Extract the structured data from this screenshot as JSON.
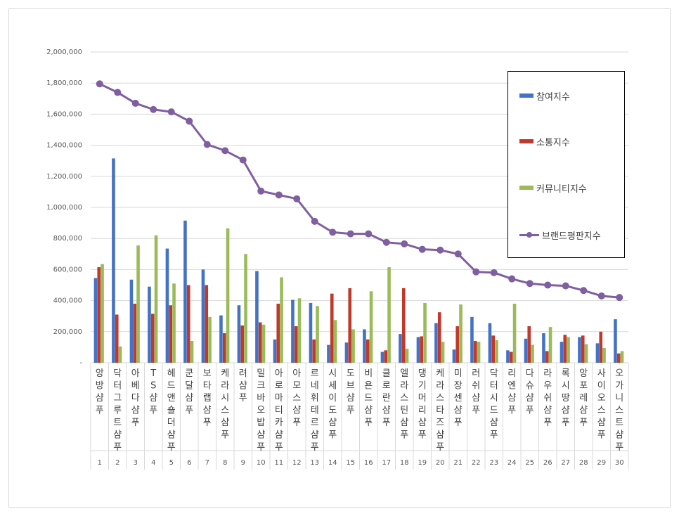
{
  "chart_data": {
    "type": "bar",
    "categories": [
      "앙방 샴푸",
      "닥터그루트 샴푸",
      "아베다 샴푸",
      "TS 샴푸",
      "헤드앤숄더 샴푸",
      "쿤달 샴푸",
      "보타랩 샴푸",
      "케라시스 샴푸",
      "려 샴푸",
      "밀크바오밥 샴푸",
      "아로마티카 샴푸",
      "아모스 샴푸",
      "르네휘테르 샴푸",
      "시세이도 샴푸",
      "도브 샴푸",
      "비욘드 샴푸",
      "클로란 샴푸",
      "엘라스틴 샴푸",
      "댕기머리 샴푸",
      "케라스타즈 샴푸",
      "미장센 샴푸",
      "러쉬 샴푸",
      "닥터시드 샴푸",
      "리엔 샴푸",
      "다슈 샴푸",
      "라우쉬 샴푸",
      "록시땅 샴푸",
      "앙포레 샴푸",
      "사이오스 샴푸",
      "오가니스트 샴푸"
    ],
    "ranks": [
      "1",
      "2",
      "3",
      "4",
      "5",
      "6",
      "7",
      "8",
      "9",
      "10",
      "11",
      "12",
      "13",
      "14",
      "15",
      "16",
      "17",
      "18",
      "19",
      "20",
      "21",
      "22",
      "23",
      "24",
      "25",
      "26",
      "27",
      "28",
      "29",
      "30"
    ],
    "series": [
      {
        "name": "참여지수",
        "type": "bar",
        "color": "#4472c4",
        "values": [
          545000,
          1315000,
          535000,
          490000,
          735000,
          915000,
          600000,
          305000,
          370000,
          590000,
          150000,
          405000,
          385000,
          115000,
          130000,
          215000,
          70000,
          185000,
          165000,
          255000,
          85000,
          295000,
          255000,
          80000,
          155000,
          190000,
          135000,
          165000,
          125000,
          280000
        ]
      },
      {
        "name": "소통지수",
        "type": "bar",
        "color": "#c0392b",
        "values": [
          615000,
          310000,
          380000,
          315000,
          370000,
          500000,
          500000,
          190000,
          240000,
          260000,
          380000,
          235000,
          150000,
          445000,
          480000,
          150000,
          80000,
          480000,
          170000,
          325000,
          235000,
          140000,
          175000,
          70000,
          235000,
          75000,
          180000,
          175000,
          200000,
          60000
        ]
      },
      {
        "name": "커뮤니티지수",
        "type": "bar",
        "color": "#9bbb59",
        "values": [
          635000,
          105000,
          755000,
          820000,
          510000,
          140000,
          295000,
          865000,
          700000,
          245000,
          550000,
          415000,
          365000,
          275000,
          215000,
          460000,
          615000,
          90000,
          385000,
          135000,
          375000,
          135000,
          145000,
          380000,
          115000,
          230000,
          165000,
          120000,
          95000,
          75000
        ]
      },
      {
        "name": "브랜드평판지수",
        "type": "line",
        "color": "#7f5fa0",
        "values": [
          1795000,
          1740000,
          1670000,
          1630000,
          1615000,
          1555000,
          1405000,
          1365000,
          1305000,
          1105000,
          1080000,
          1055000,
          910000,
          840000,
          830000,
          830000,
          775000,
          765000,
          730000,
          725000,
          700000,
          585000,
          580000,
          540000,
          510000,
          500000,
          495000,
          465000,
          430000,
          420000
        ]
      }
    ],
    "y_ticks": [
      "-",
      "200,000",
      "400,000",
      "600,000",
      "800,000",
      "1,000,000",
      "1,200,000",
      "1,400,000",
      "1,600,000",
      "1,800,000",
      "2,000,000"
    ],
    "ylim": [
      0,
      2000000
    ],
    "grid": true,
    "legend_position": "right"
  }
}
